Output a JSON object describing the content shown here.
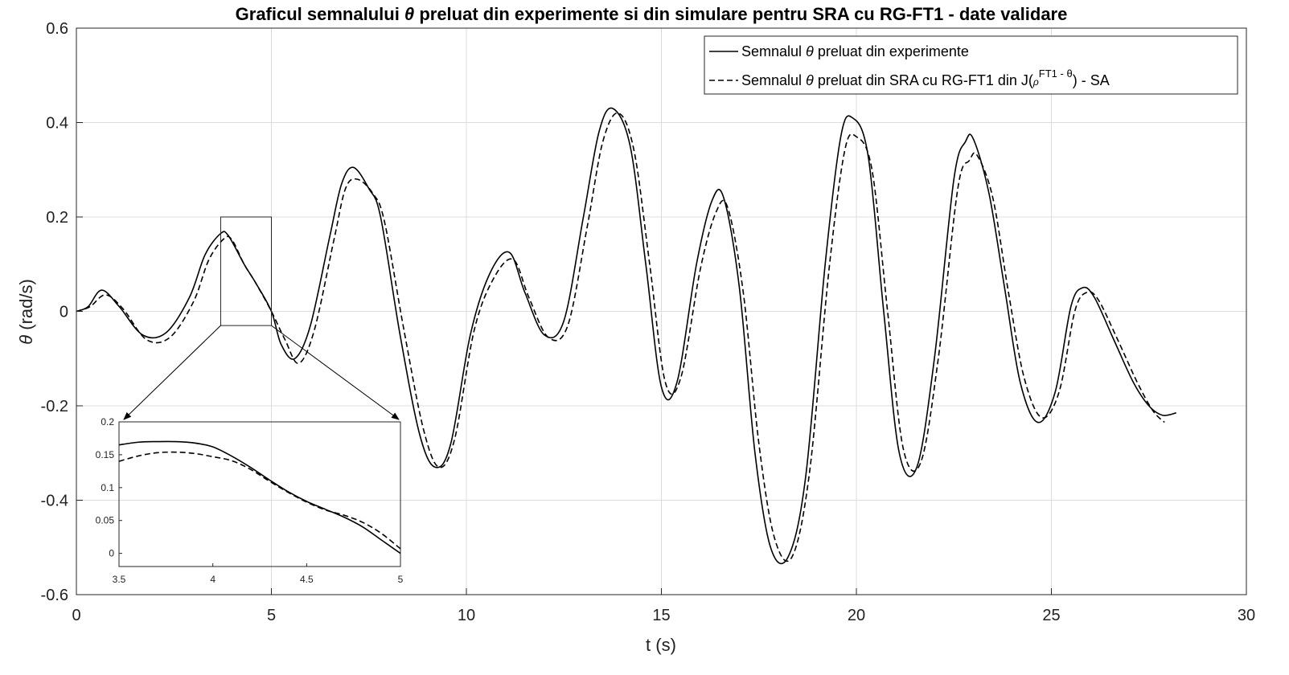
{
  "chart_data": [
    {
      "type": "line",
      "title_parts": [
        "Graficul semnalului ",
        "θ",
        " preluat din experimente si din simulare pentru SRA cu RG-FT1  - date validare"
      ],
      "xlabel": "t (s)",
      "ylabel_symbol": "θ",
      "ylabel_unit": " (rad/s)",
      "xlim": [
        0,
        30
      ],
      "ylim": [
        -0.6,
        0.6
      ],
      "xticks": [
        0,
        5,
        10,
        15,
        20,
        25,
        30
      ],
      "xtick_labels": [
        "0",
        "5",
        "10",
        "15",
        "20",
        "25",
        "30"
      ],
      "yticks": [
        0.6,
        0.4,
        0.2,
        0,
        -0.2,
        -0.4,
        -0.6
      ],
      "ytick_labels": [
        "0.6",
        "0.4",
        "0.2",
        "0",
        "-0.2",
        "-0.4",
        "-0.6"
      ],
      "grid": true,
      "legend_position": "top-right",
      "series": [
        {
          "name_parts": [
            "Semnalul ",
            "θ",
            " preluat din experimente"
          ],
          "style": "solid",
          "x": [
            0,
            0.3,
            0.65,
            1.1,
            1.7,
            2.3,
            2.9,
            3.3,
            3.7,
            3.9,
            4.3,
            4.6,
            5.0,
            5.25,
            5.6,
            6.0,
            6.5,
            6.8,
            7.1,
            7.5,
            7.8,
            8.3,
            8.8,
            9.2,
            9.6,
            10.1,
            10.6,
            11.1,
            11.5,
            12.0,
            12.5,
            13.0,
            13.4,
            13.75,
            14.2,
            14.6,
            15.0,
            15.4,
            15.9,
            16.3,
            16.6,
            17.0,
            17.4,
            17.8,
            18.25,
            18.7,
            19.2,
            19.6,
            19.9,
            20.3,
            20.7,
            21.1,
            21.55,
            22.0,
            22.5,
            22.8,
            23.0,
            23.4,
            23.8,
            24.2,
            24.65,
            25.1,
            25.5,
            25.8,
            26.1,
            26.6,
            27.1,
            27.5,
            27.85,
            28.2
          ],
          "y": [
            0.0,
            0.01,
            0.045,
            0.01,
            -0.05,
            -0.045,
            0.03,
            0.12,
            0.165,
            0.16,
            0.1,
            0.06,
            0.0,
            -0.07,
            -0.1,
            -0.03,
            0.16,
            0.27,
            0.305,
            0.26,
            0.2,
            -0.05,
            -0.26,
            -0.33,
            -0.28,
            -0.05,
            0.08,
            0.125,
            0.04,
            -0.05,
            -0.02,
            0.2,
            0.38,
            0.43,
            0.35,
            0.1,
            -0.16,
            -0.15,
            0.1,
            0.235,
            0.24,
            0.05,
            -0.3,
            -0.5,
            -0.52,
            -0.35,
            0.1,
            0.37,
            0.41,
            0.33,
            0.0,
            -0.3,
            -0.33,
            -0.1,
            0.28,
            0.36,
            0.365,
            0.25,
            0.05,
            -0.15,
            -0.235,
            -0.17,
            0.01,
            0.05,
            0.03,
            -0.06,
            -0.15,
            -0.2,
            -0.22,
            -0.215
          ]
        },
        {
          "name_parts": [
            "Semnalul ",
            "θ",
            " preluat din SRA cu RG-FT1 din J(",
            "ρ",
            "FT1 - θ",
            ") - SA"
          ],
          "style": "dashed",
          "x": [
            0,
            0.35,
            0.75,
            1.2,
            1.8,
            2.4,
            3.0,
            3.4,
            3.8,
            4.0,
            4.3,
            4.6,
            5.0,
            5.35,
            5.7,
            6.1,
            6.6,
            6.9,
            7.2,
            7.6,
            7.9,
            8.4,
            8.9,
            9.3,
            9.7,
            10.2,
            10.7,
            11.2,
            11.6,
            12.1,
            12.6,
            13.1,
            13.5,
            13.9,
            14.3,
            14.7,
            15.1,
            15.5,
            16.0,
            16.4,
            16.7,
            17.1,
            17.5,
            17.9,
            18.35,
            18.8,
            19.3,
            19.7,
            20.0,
            20.4,
            20.8,
            21.2,
            21.65,
            22.1,
            22.6,
            22.9,
            23.1,
            23.5,
            23.9,
            24.3,
            24.75,
            25.2,
            25.6,
            25.9,
            26.2,
            26.7,
            27.2,
            27.6,
            27.9
          ],
          "y": [
            0.0,
            0.01,
            0.035,
            0.005,
            -0.06,
            -0.055,
            0.02,
            0.11,
            0.155,
            0.15,
            0.1,
            0.06,
            0.0,
            -0.06,
            -0.11,
            -0.04,
            0.15,
            0.26,
            0.28,
            0.25,
            0.19,
            -0.04,
            -0.25,
            -0.33,
            -0.27,
            -0.04,
            0.07,
            0.11,
            0.03,
            -0.055,
            -0.03,
            0.18,
            0.36,
            0.42,
            0.34,
            0.1,
            -0.15,
            -0.14,
            0.09,
            0.21,
            0.22,
            0.04,
            -0.28,
            -0.48,
            -0.52,
            -0.34,
            0.09,
            0.34,
            0.37,
            0.3,
            0.0,
            -0.29,
            -0.32,
            -0.1,
            0.26,
            0.32,
            0.33,
            0.24,
            0.04,
            -0.14,
            -0.225,
            -0.17,
            0.0,
            0.04,
            0.025,
            -0.06,
            -0.15,
            -0.21,
            -0.235
          ]
        }
      ]
    },
    {
      "type": "line",
      "title": "",
      "xlim": [
        3.5,
        5
      ],
      "ylim": [
        -0.02,
        0.2
      ],
      "xticks": [
        3.5,
        4,
        4.5,
        5
      ],
      "xtick_labels": [
        "3.5",
        "4",
        "4.5",
        "5"
      ],
      "yticks": [
        0.2,
        0.15,
        0.1,
        0.05,
        0
      ],
      "ytick_labels": [
        "0.2",
        "0.15",
        "0.1",
        "0.05",
        "0"
      ],
      "grid": false,
      "zoom_region": {
        "x": [
          3.7,
          5.0
        ],
        "y": [
          -0.03,
          0.2
        ]
      },
      "series": [
        {
          "style": "solid",
          "x": [
            3.5,
            3.6,
            3.7,
            3.8,
            3.9,
            4.0,
            4.1,
            4.2,
            4.3,
            4.4,
            4.5,
            4.6,
            4.7,
            4.8,
            4.9,
            5.0
          ],
          "y": [
            0.165,
            0.169,
            0.17,
            0.17,
            0.168,
            0.162,
            0.148,
            0.131,
            0.112,
            0.094,
            0.079,
            0.067,
            0.055,
            0.04,
            0.02,
            0.0
          ]
        },
        {
          "style": "dashed",
          "x": [
            3.5,
            3.6,
            3.7,
            3.8,
            3.9,
            4.0,
            4.1,
            4.2,
            4.3,
            4.4,
            4.5,
            4.6,
            4.7,
            4.8,
            4.9,
            5.0
          ],
          "y": [
            0.14,
            0.148,
            0.153,
            0.154,
            0.152,
            0.147,
            0.141,
            0.128,
            0.11,
            0.093,
            0.078,
            0.066,
            0.058,
            0.047,
            0.03,
            0.007
          ]
        }
      ]
    }
  ]
}
